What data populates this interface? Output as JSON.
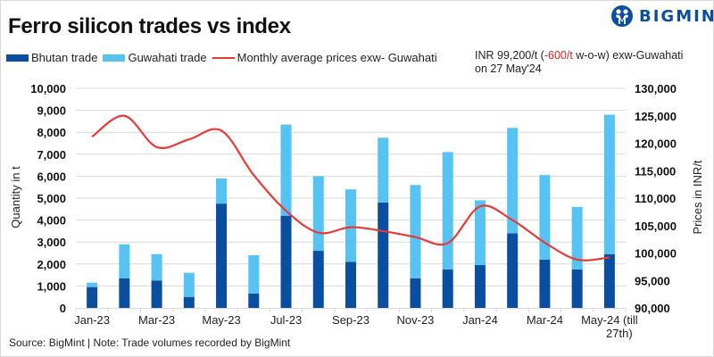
{
  "header": {
    "title": "Ferro silicon trades vs index",
    "logo_text": "BIGMINT"
  },
  "legend": {
    "items": [
      {
        "label": "Bhutan trade",
        "type": "bar",
        "color": "#0a4ea2"
      },
      {
        "label": "Guwahati trade",
        "type": "bar",
        "color": "#56c3f2"
      },
      {
        "label": "Monthly average prices exw- Guwahati",
        "type": "line",
        "color": "#e83a35"
      }
    ]
  },
  "annotation": {
    "prefix": "INR 99,200/t (",
    "change": "-600/t",
    "suffix": " w-o-w) exw-Guwahati",
    "line2": "on 27 May'24",
    "change_color": "#e02020"
  },
  "footer": {
    "source": "Source: BigMint | Note: Trade volumes recorded by BigMint"
  },
  "chart_data": {
    "type": "bar",
    "stacked": true,
    "title": "Ferro silicon trades vs index",
    "categories": [
      "Jan-23",
      "Feb-23",
      "Mar-23",
      "Apr-23",
      "May-23",
      "Jun-23",
      "Jul-23",
      "Aug-23",
      "Sep-23",
      "Oct-23",
      "Nov-23",
      "Dec-23",
      "Jan-24",
      "Feb-24",
      "Mar-24",
      "Apr-24",
      "May-24 (till 27th)"
    ],
    "x_tick_labels": [
      "Jan-23",
      "Mar-23",
      "May-23",
      "Jul-23",
      "Sep-23",
      "Nov-23",
      "Jan-24",
      "Mar-24",
      "May-24 (till\n27th)"
    ],
    "series": [
      {
        "name": "Bhutan trade",
        "axis": "left",
        "kind": "bar",
        "color": "#0a4ea2",
        "values": [
          950,
          1350,
          1250,
          500,
          4750,
          650,
          4200,
          2600,
          2100,
          4800,
          1350,
          1750,
          1950,
          3400,
          2200,
          1750,
          2450
        ]
      },
      {
        "name": "Guwahati trade",
        "axis": "left",
        "kind": "bar",
        "color": "#56c3f2",
        "values": [
          200,
          1550,
          1200,
          1100,
          1150,
          1750,
          4150,
          3400,
          3300,
          2950,
          4250,
          5350,
          2950,
          4800,
          3850,
          2850,
          6350
        ]
      },
      {
        "name": "Monthly average prices exw- Guwahati",
        "axis": "right",
        "kind": "line",
        "color": "#e83a35",
        "values": [
          121200,
          125000,
          119300,
          120700,
          122300,
          114200,
          107700,
          103700,
          104700,
          104000,
          102900,
          101800,
          108500,
          106000,
          101900,
          98800,
          99200
        ]
      }
    ],
    "ylabel": "Quantity in t",
    "ylim": [
      0,
      10000
    ],
    "yticks": [
      0,
      1000,
      2000,
      3000,
      4000,
      5000,
      6000,
      7000,
      8000,
      9000,
      10000
    ],
    "y2label": "Prices in INR/t",
    "y2lim": [
      90000,
      130000
    ],
    "y2ticks": [
      90000,
      95000,
      100000,
      105000,
      110000,
      115000,
      120000,
      125000,
      130000
    ],
    "grid": true,
    "legend_position": "top-left"
  }
}
